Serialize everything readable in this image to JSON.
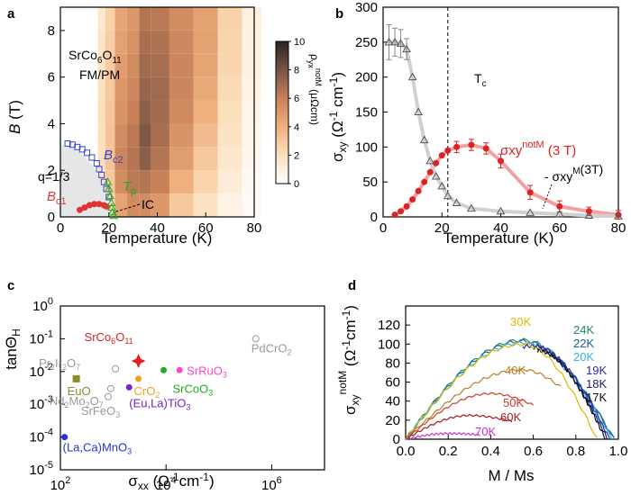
{
  "chart_data": [
    {
      "panel": "a",
      "type": "heatmap",
      "xlabel": "Temperature (K)",
      "ylabel": "B (T)",
      "xlim": [
        0,
        80
      ],
      "ylim": [
        0,
        9
      ],
      "xticks": [
        0,
        20,
        40,
        60,
        80
      ],
      "yticks": [
        0,
        2,
        4,
        6,
        8
      ],
      "material_label": "SrCo6O11",
      "phase_label": "FM/PM",
      "colorbar": {
        "label": "ρyx notM (μΩcm)",
        "range": [
          0,
          10
        ],
        "ticks": [
          0,
          2,
          4,
          6,
          8,
          10
        ]
      },
      "columns": [
        {
          "t": 17,
          "values": [
            1.5,
            1.8,
            2.0,
            2.0,
            2.0,
            1.9,
            1.8,
            1.7,
            1.5
          ]
        },
        {
          "t": 20,
          "values": [
            2.5,
            3.0,
            3.2,
            3.2,
            3.1,
            3.0,
            2.9,
            2.8,
            2.6
          ]
        },
        {
          "t": 25,
          "values": [
            4.5,
            5.5,
            5.8,
            5.5,
            5.2,
            5.0,
            4.8,
            4.6,
            4.4
          ]
        },
        {
          "t": 30,
          "values": [
            5.5,
            6.3,
            6.5,
            6.3,
            6.0,
            5.7,
            5.5,
            5.3,
            5.0
          ]
        },
        {
          "t": 35,
          "values": [
            5.5,
            6.5,
            7.5,
            7.8,
            7.5,
            7.2,
            7.0,
            6.8,
            6.5
          ]
        },
        {
          "t": 40,
          "values": [
            5.0,
            6.0,
            6.5,
            6.8,
            7.0,
            7.0,
            6.8,
            6.6,
            6.3
          ]
        },
        {
          "t": 50,
          "values": [
            3.0,
            4.0,
            4.8,
            5.2,
            5.6,
            5.8,
            5.8,
            5.7,
            5.5
          ]
        },
        {
          "t": 60,
          "values": [
            1.8,
            2.5,
            3.0,
            3.5,
            4.0,
            4.3,
            4.5,
            4.6,
            4.6
          ]
        },
        {
          "t": 70,
          "values": [
            0.8,
            1.2,
            1.5,
            1.8,
            2.0,
            2.2,
            2.4,
            2.5,
            2.6
          ]
        },
        {
          "t": 80,
          "values": [
            0.3,
            0.4,
            0.5,
            0.6,
            0.7,
            0.8,
            0.9,
            0.9,
            1.0
          ]
        }
      ],
      "series": [
        {
          "name": "Bc2",
          "marker": "square",
          "color": "#3344cc",
          "x": [
            3,
            5,
            7,
            9,
            11,
            13,
            15,
            16,
            17,
            18,
            19,
            20
          ],
          "y": [
            3.15,
            3.1,
            3.0,
            2.9,
            2.75,
            2.55,
            2.3,
            2.05,
            1.8,
            1.5,
            1.2,
            0.85
          ]
        },
        {
          "name": "Bc1",
          "marker": "circle",
          "color": "#dd3333",
          "x": [
            8,
            10,
            12,
            14,
            16,
            18,
            19
          ],
          "y": [
            0.3,
            0.4,
            0.5,
            0.55,
            0.55,
            0.5,
            0.45
          ]
        },
        {
          "name": "Tp",
          "marker": "triangle",
          "color": "#22aa22",
          "x": [
            19.5,
            20,
            20.5,
            21,
            21.2,
            21.5,
            22
          ],
          "y": [
            1.5,
            1.2,
            0.9,
            0.6,
            0.4,
            0.2,
            0.05
          ]
        }
      ],
      "annotations": [
        "q=1/3",
        "Bc2",
        "Bc1",
        "Tp",
        "IC"
      ]
    },
    {
      "panel": "b",
      "type": "line",
      "xlabel": "Temperature (K)",
      "ylabel": "σxy (Ω-1cm-1)",
      "xlim": [
        0,
        80
      ],
      "ylim": [
        0,
        300
      ],
      "xticks": [
        0,
        20,
        40,
        60,
        80
      ],
      "yticks": [
        0,
        50,
        100,
        150,
        200,
        250,
        300
      ],
      "tc_label": "Tc",
      "tc_value": 22,
      "series": [
        {
          "name": "σxy notM (3 T)",
          "color": "#dd2222",
          "marker": "circle",
          "x": [
            4,
            6,
            8,
            10,
            12,
            14,
            16,
            18,
            20,
            22,
            25,
            30,
            35,
            40,
            50,
            60,
            70,
            80
          ],
          "y": [
            3,
            8,
            15,
            25,
            37,
            50,
            64,
            77,
            88,
            95,
            100,
            103,
            98,
            80,
            35,
            15,
            8,
            3
          ],
          "err": [
            0,
            0,
            0,
            0,
            0,
            0,
            0,
            0,
            0,
            0,
            8,
            8,
            8,
            10,
            10,
            8,
            6,
            6
          ]
        },
        {
          "name": "- σxy M (3T)",
          "color": "#888888",
          "marker": "triangle",
          "x": [
            2,
            4,
            6,
            8,
            10,
            12,
            14,
            16,
            18,
            20,
            22,
            25,
            30,
            40,
            50,
            60,
            70,
            80
          ],
          "y": [
            250,
            250,
            248,
            240,
            200,
            150,
            110,
            80,
            58,
            44,
            30,
            20,
            12,
            8,
            6,
            4,
            2,
            1
          ],
          "err": [
            25,
            20,
            20,
            15,
            0,
            0,
            0,
            0,
            0,
            0,
            0,
            0,
            0,
            0,
            0,
            0,
            0,
            0
          ]
        }
      ],
      "labels": {
        "notM_main": "σxy",
        "notM_sup": "notM",
        "notM_tail": "(3 T)",
        "M_main": "- σxy",
        "M_sup": "M",
        "M_tail": "(3T)"
      }
    },
    {
      "panel": "c",
      "type": "scatter",
      "xlabel": "σxx (Ω-1cm-1)",
      "ylabel": "tanΘH",
      "xscale": "log",
      "yscale": "log",
      "xlim": [
        100,
        10000000
      ],
      "ylim": [
        1e-05,
        1
      ],
      "xtick_labels": [
        "10^2",
        "10^4",
        "10^6"
      ],
      "ytick_labels": [
        "10^0",
        "10^-1",
        "10^-2",
        "10^-3",
        "10^-4",
        "10^-5"
      ],
      "points": [
        {
          "name": "SrCo6O11",
          "x": 3000,
          "y": 0.021,
          "color": "#e02020",
          "marker": "star",
          "label_dx": -60,
          "label_dy": -22
        },
        {
          "name": "PdCrO2",
          "x": 500000,
          "y": 0.1,
          "color": "#999999",
          "marker": "hollow-circle",
          "label_dx": -5,
          "label_dy": 15
        },
        {
          "name": "Pr2Ir2O7",
          "x": 1100,
          "y": 0.012,
          "color": "#999999",
          "marker": "hollow-circle",
          "label_dx": -85,
          "label_dy": -2
        },
        {
          "name": "EuO",
          "x": 200,
          "y": 0.006,
          "color": "#8b8b2a",
          "marker": "square",
          "label_dx": -10,
          "label_dy": 18
        },
        {
          "name": "Nd2Mo2O7",
          "x": 900,
          "y": 0.003,
          "color": "#999999",
          "marker": "hollow-circle",
          "label_dx": -68,
          "label_dy": 18
        },
        {
          "name": "SrFeO3",
          "x": 800,
          "y": 0.0017,
          "color": "#999999",
          "marker": "hollow-circle",
          "label_dx": -30,
          "label_dy": 20
        },
        {
          "name": "CrO2",
          "x": 3000,
          "y": 0.006,
          "color": "#f0a020",
          "marker": "circle",
          "label_dx": -5,
          "label_dy": 18
        },
        {
          "name": "SrRuO3",
          "x": 18000,
          "y": 0.011,
          "color": "#ff44cc",
          "marker": "circle",
          "label_dx": 8,
          "label_dy": 5
        },
        {
          "name": "SrCoO3",
          "x": 9000,
          "y": 0.011,
          "color": "#22aa22",
          "marker": "circle",
          "label_dx": 10,
          "label_dy": 25
        },
        {
          "name": "(Eu,La)TiO3",
          "x": 2000,
          "y": 0.0033,
          "color": "#7722cc",
          "marker": "circle",
          "label_dx": 0,
          "label_dy": 22
        },
        {
          "name": "(La,Ca)MnO3",
          "x": 120,
          "y": 0.0001,
          "color": "#2233dd",
          "marker": "circle",
          "label_dx": -2,
          "label_dy": 16
        }
      ]
    },
    {
      "panel": "d",
      "type": "line",
      "xlabel": "M / Ms",
      "ylabel": "σxy notM (Ω-1cm-1)",
      "xlim": [
        0,
        1
      ],
      "ylim": [
        0,
        140
      ],
      "xticks": [
        0,
        0.2,
        0.4,
        0.6,
        0.8,
        1.0
      ],
      "yticks": [
        0,
        20,
        40,
        60,
        80,
        100,
        120
      ],
      "series": [
        {
          "name": "24K",
          "color": "#1a8a6a",
          "end": 0.98,
          "peak": 104,
          "peak_x": 0.55
        },
        {
          "name": "22K",
          "color": "#1a5fa0",
          "end": 0.98,
          "peak": 103,
          "peak_x": 0.55
        },
        {
          "name": "20K",
          "color": "#33b5dd",
          "end": 0.97,
          "peak": 101,
          "peak_x": 0.55
        },
        {
          "name": "19K",
          "color": "#2a2aaa",
          "end": 0.96,
          "peak": 98,
          "peak_x": 0.6,
          "start": 0.55
        },
        {
          "name": "18K",
          "color": "#1a1a80",
          "end": 0.95,
          "peak": 96,
          "peak_x": 0.6,
          "start": 0.6
        },
        {
          "name": "17K",
          "color": "#111111",
          "end": 0.94,
          "peak": 93,
          "peak_x": 0.62,
          "start": 0.62
        },
        {
          "name": "30K",
          "color": "#e0b800",
          "end": 0.9,
          "peak": 100,
          "peak_x": 0.55
        },
        {
          "name": "40K",
          "color": "#b8802a",
          "end": 0.73,
          "peak": 73,
          "peak_x": 0.55
        },
        {
          "name": "50K",
          "color": "#d03a2a",
          "end": 0.6,
          "peak": 48,
          "peak_x": 0.4
        },
        {
          "name": "60K",
          "color": "#aa1a1a",
          "end": 0.5,
          "peak": 25,
          "peak_x": 0.3
        },
        {
          "name": "70K",
          "color": "#cc33cc",
          "end": 0.35,
          "peak": 6,
          "peak_x": 0.2
        }
      ]
    }
  ],
  "panel_letters": {
    "a": "a",
    "b": "b",
    "c": "c",
    "d": "d"
  }
}
